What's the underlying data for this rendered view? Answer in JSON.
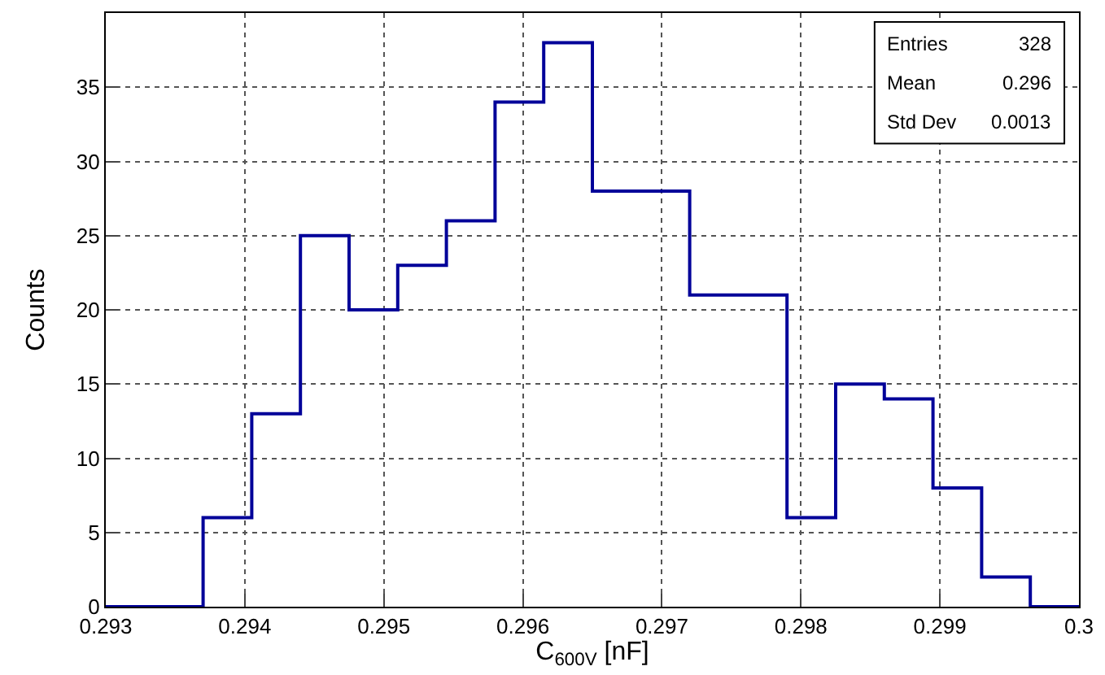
{
  "chart_data": {
    "type": "histogram",
    "xlabel": "C$_{600V}$ [nF]",
    "ylabel": "Counts",
    "bins": [
      0.293,
      0.29335,
      0.2937,
      0.29405,
      0.2944,
      0.29475,
      0.2951,
      0.29545,
      0.2958,
      0.29615,
      0.2965,
      0.29685,
      0.2972,
      0.29755,
      0.2979,
      0.29825,
      0.2986,
      0.29895,
      0.2993,
      0.29965,
      0.3
    ],
    "values": [
      0,
      0,
      6,
      13,
      25,
      20,
      23,
      26,
      34,
      38,
      28,
      28,
      21,
      21,
      6,
      15,
      14,
      8,
      2,
      0
    ],
    "color": "#000099",
    "xlim": [
      0.293,
      0.3
    ],
    "ylim": [
      0,
      40
    ],
    "xticks": [
      0.293,
      0.294,
      0.295,
      0.296,
      0.297,
      0.298,
      0.299,
      {
        "value": 0.3,
        "label": "0.3"
      }
    ],
    "yticks": [
      0,
      5,
      10,
      15,
      20,
      25,
      30,
      35
    ],
    "grid": true,
    "line_style": "solid",
    "annotations": [
      "Entries",
      "328",
      "Mean",
      "0.296",
      "Std Dev",
      "0.0013"
    ]
  }
}
